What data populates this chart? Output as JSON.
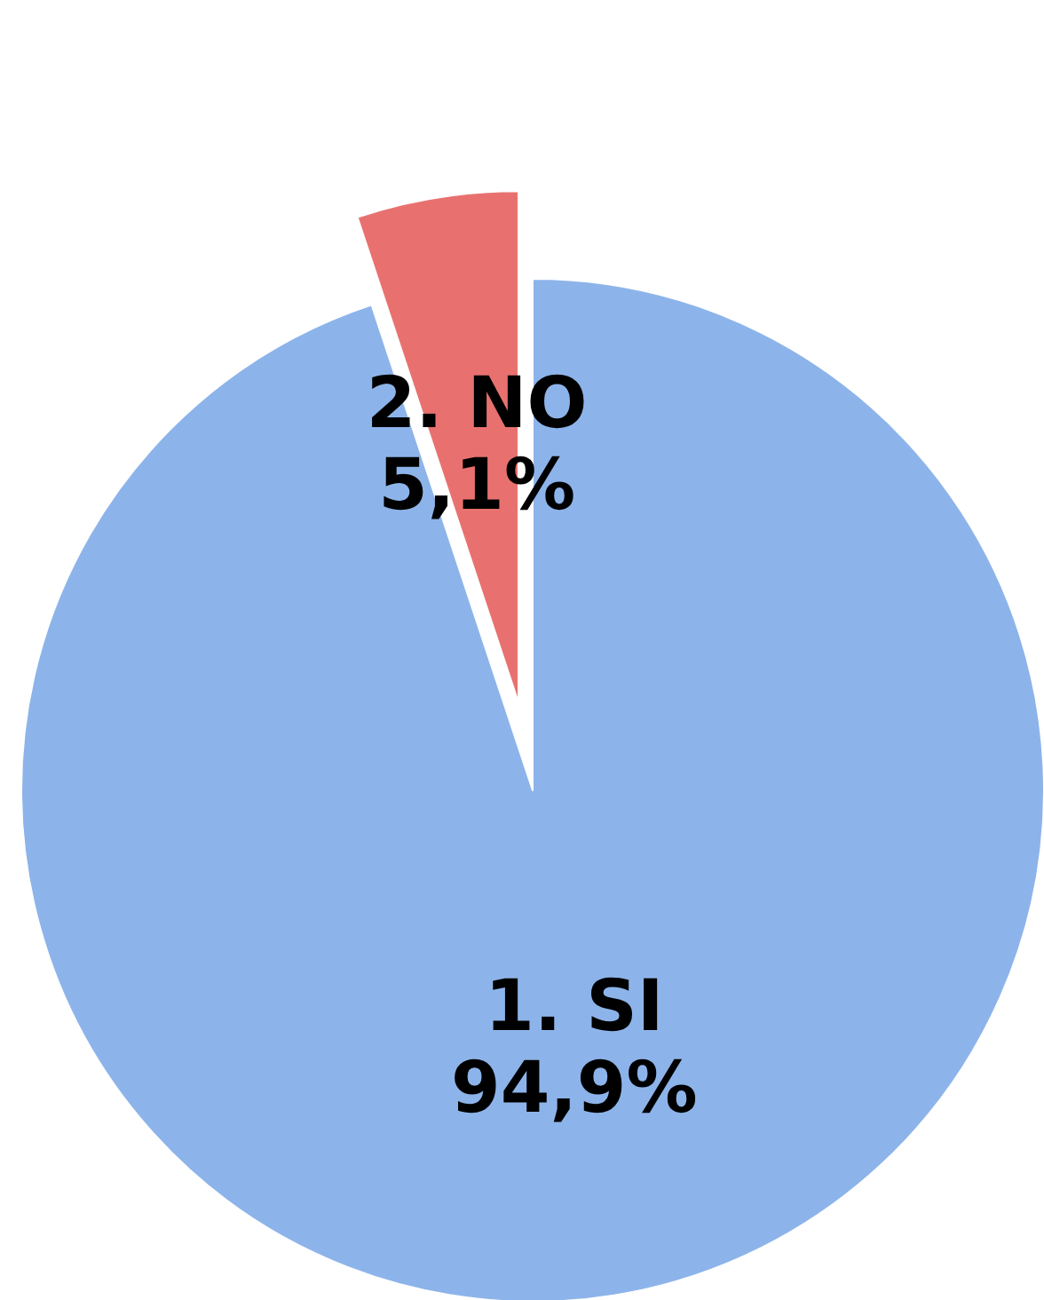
{
  "chart_data": {
    "type": "pie",
    "categories": [
      "1. SI",
      "2. NO"
    ],
    "values": [
      94.9,
      5.1
    ],
    "colors": [
      "#8db4ea",
      "#e8716f"
    ],
    "value_labels": [
      "94,9%",
      "5,1%"
    ],
    "legend": false
  }
}
